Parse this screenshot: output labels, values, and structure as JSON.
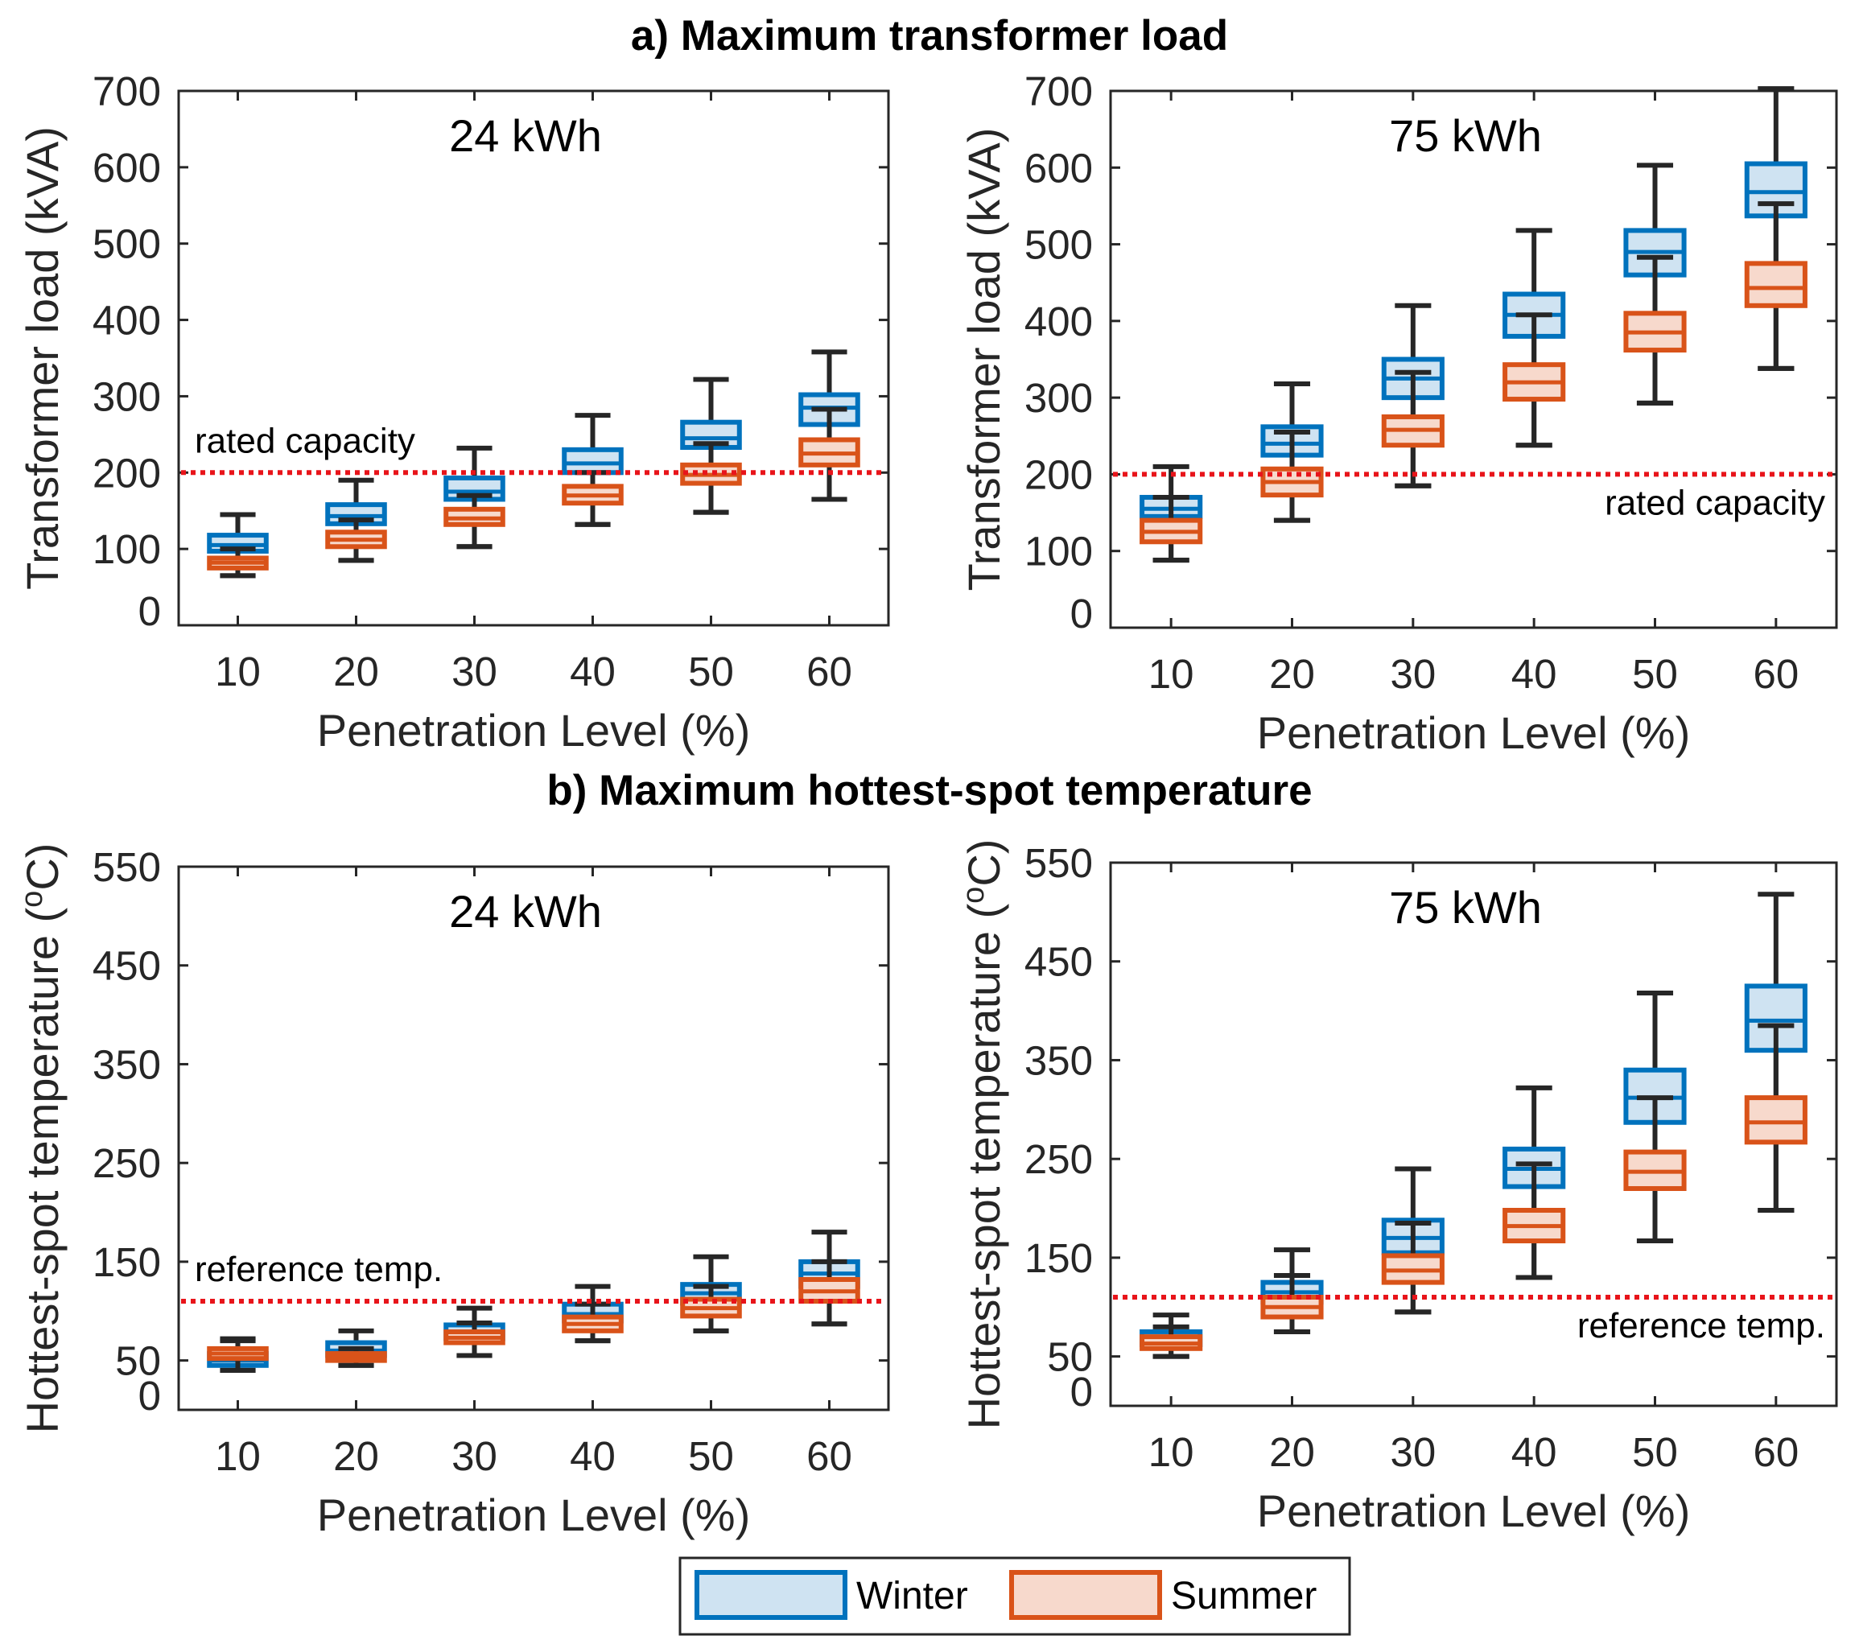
{
  "colors": {
    "winter_edge": "#0072BD",
    "winter_fill": "#CFE3F2",
    "summer_edge": "#D95319",
    "summer_fill": "#F7D9CC",
    "whisker": "#262626",
    "reference_line": "#E8141A"
  },
  "section_titles": {
    "a": "a) Maximum transformer load",
    "b": "b) Maximum hottest-spot temperature"
  },
  "legend": {
    "winter": "Winter",
    "summer": "Summer"
  },
  "chart_data": [
    {
      "id": "a-left",
      "type": "box",
      "title": "24 kWh",
      "xlabel": "Penetration Level (%)",
      "ylabel": "Transformer load (kVA)",
      "categories": [
        "10",
        "20",
        "30",
        "40",
        "50",
        "60"
      ],
      "ylim": [
        0,
        700
      ],
      "yticks": [
        "0",
        "100",
        "200",
        "300",
        "400",
        "500",
        "600",
        "700"
      ],
      "reference": {
        "value": 200,
        "label": "rated capacity",
        "label_position": "above-left"
      },
      "series": [
        {
          "name": "Winter",
          "boxes": [
            {
              "min": 65,
              "q1": 97,
              "median": 105,
              "q3": 118,
              "max": 145
            },
            {
              "min": 85,
              "q1": 133,
              "median": 143,
              "q3": 158,
              "max": 190
            },
            {
              "min": 103,
              "q1": 165,
              "median": 175,
              "q3": 193,
              "max": 232
            },
            {
              "min": 132,
              "q1": 200,
              "median": 212,
              "q3": 230,
              "max": 275
            },
            {
              "min": 148,
              "q1": 233,
              "median": 245,
              "q3": 266,
              "max": 322
            },
            {
              "min": 165,
              "q1": 263,
              "median": 285,
              "q3": 302,
              "max": 358
            }
          ]
        },
        {
          "name": "Summer",
          "boxes": [
            {
              "min": 65,
              "q1": 75,
              "median": 82,
              "q3": 88,
              "max": 100
            },
            {
              "min": 85,
              "q1": 103,
              "median": 112,
              "q3": 122,
              "max": 138
            },
            {
              "min": 103,
              "q1": 132,
              "median": 140,
              "q3": 152,
              "max": 170
            },
            {
              "min": 132,
              "q1": 160,
              "median": 170,
              "q3": 182,
              "max": 200
            },
            {
              "min": 148,
              "q1": 186,
              "median": 197,
              "q3": 210,
              "max": 238
            },
            {
              "min": 165,
              "q1": 210,
              "median": 225,
              "q3": 243,
              "max": 283
            }
          ]
        }
      ]
    },
    {
      "id": "a-right",
      "type": "box",
      "title": "75 kWh",
      "xlabel": "Penetration Level (%)",
      "ylabel": "Transformer load (kVA)",
      "categories": [
        "10",
        "20",
        "30",
        "40",
        "50",
        "60"
      ],
      "ylim": [
        0,
        700
      ],
      "yticks": [
        "0",
        "100",
        "200",
        "300",
        "400",
        "500",
        "600",
        "700"
      ],
      "reference": {
        "value": 200,
        "label": "rated capacity",
        "label_position": "below-right"
      },
      "series": [
        {
          "name": "Winter",
          "boxes": [
            {
              "min": 88,
              "q1": 145,
              "median": 155,
              "q3": 170,
              "max": 210
            },
            {
              "min": 140,
              "q1": 225,
              "median": 240,
              "q3": 262,
              "max": 318
            },
            {
              "min": 185,
              "q1": 300,
              "median": 325,
              "q3": 350,
              "max": 420
            },
            {
              "min": 238,
              "q1": 380,
              "median": 408,
              "q3": 435,
              "max": 518
            },
            {
              "min": 293,
              "q1": 460,
              "median": 490,
              "q3": 518,
              "max": 603
            },
            {
              "min": 338,
              "q1": 537,
              "median": 568,
              "q3": 605,
              "max": 703
            }
          ]
        },
        {
          "name": "Summer",
          "boxes": [
            {
              "min": 88,
              "q1": 112,
              "median": 125,
              "q3": 140,
              "max": 170
            },
            {
              "min": 140,
              "q1": 173,
              "median": 190,
              "q3": 207,
              "max": 255
            },
            {
              "min": 185,
              "q1": 238,
              "median": 258,
              "q3": 275,
              "max": 333
            },
            {
              "min": 238,
              "q1": 298,
              "median": 320,
              "q3": 343,
              "max": 408
            },
            {
              "min": 293,
              "q1": 362,
              "median": 385,
              "q3": 410,
              "max": 483
            },
            {
              "min": 338,
              "q1": 420,
              "median": 443,
              "q3": 475,
              "max": 553
            }
          ]
        }
      ]
    },
    {
      "id": "b-left",
      "type": "box",
      "title": "24 kWh",
      "xlabel": "Penetration Level (%)",
      "ylabel": "Hottest-spot temperature",
      "ylabel_unit": "(oC)",
      "categories": [
        "10",
        "20",
        "30",
        "40",
        "50",
        "60"
      ],
      "ylim": [
        0,
        550
      ],
      "yticks": [
        "0",
        "50",
        "150",
        "250",
        "350",
        "450",
        "550"
      ],
      "reference": {
        "value": 110,
        "label": "reference temp.",
        "label_position": "above-left"
      },
      "series": [
        {
          "name": "Winter",
          "boxes": [
            {
              "min": 40,
              "q1": 45,
              "median": 50,
              "q3": 57,
              "max": 72
            },
            {
              "min": 45,
              "q1": 55,
              "median": 60,
              "q3": 68,
              "max": 80
            },
            {
              "min": 55,
              "q1": 72,
              "median": 78,
              "q3": 86,
              "max": 103
            },
            {
              "min": 70,
              "q1": 90,
              "median": 97,
              "q3": 107,
              "max": 125
            },
            {
              "min": 80,
              "q1": 108,
              "median": 118,
              "q3": 127,
              "max": 155
            },
            {
              "min": 87,
              "q1": 125,
              "median": 138,
              "q3": 150,
              "max": 180
            }
          ]
        },
        {
          "name": "Summer",
          "boxes": [
            {
              "min": 40,
              "q1": 52,
              "median": 57,
              "q3": 62,
              "max": 70
            },
            {
              "min": 45,
              "q1": 50,
              "median": 53,
              "q3": 57,
              "max": 62
            },
            {
              "min": 55,
              "q1": 68,
              "median": 73,
              "q3": 79,
              "max": 88
            },
            {
              "min": 70,
              "q1": 80,
              "median": 87,
              "q3": 94,
              "max": 107
            },
            {
              "min": 80,
              "q1": 95,
              "median": 103,
              "q3": 112,
              "max": 125
            },
            {
              "min": 87,
              "q1": 110,
              "median": 120,
              "q3": 132,
              "max": 150
            }
          ]
        }
      ]
    },
    {
      "id": "b-right",
      "type": "box",
      "title": "75 kWh",
      "xlabel": "Penetration Level (%)",
      "ylabel": "Hottest-spot temperature",
      "ylabel_unit": "(oC)",
      "categories": [
        "10",
        "20",
        "30",
        "40",
        "50",
        "60"
      ],
      "ylim": [
        0,
        550
      ],
      "yticks": [
        "0",
        "50",
        "150",
        "250",
        "350",
        "450",
        "550"
      ],
      "reference": {
        "value": 110,
        "label": "reference temp.",
        "label_position": "below-right"
      },
      "series": [
        {
          "name": "Winter",
          "boxes": [
            {
              "min": 50,
              "q1": 62,
              "median": 68,
              "q3": 75,
              "max": 92
            },
            {
              "min": 75,
              "q1": 105,
              "median": 115,
              "q3": 125,
              "max": 158
            },
            {
              "min": 95,
              "q1": 155,
              "median": 170,
              "q3": 188,
              "max": 240
            },
            {
              "min": 130,
              "q1": 222,
              "median": 240,
              "q3": 260,
              "max": 322
            },
            {
              "min": 167,
              "q1": 287,
              "median": 312,
              "q3": 340,
              "max": 418
            },
            {
              "min": 198,
              "q1": 360,
              "median": 390,
              "q3": 425,
              "max": 518
            }
          ]
        },
        {
          "name": "Summer",
          "boxes": [
            {
              "min": 50,
              "q1": 58,
              "median": 63,
              "q3": 70,
              "max": 80
            },
            {
              "min": 75,
              "q1": 90,
              "median": 100,
              "q3": 110,
              "max": 132
            },
            {
              "min": 95,
              "q1": 125,
              "median": 137,
              "q3": 152,
              "max": 185
            },
            {
              "min": 130,
              "q1": 167,
              "median": 182,
              "q3": 198,
              "max": 245
            },
            {
              "min": 167,
              "q1": 220,
              "median": 237,
              "q3": 257,
              "max": 312
            },
            {
              "min": 198,
              "q1": 267,
              "median": 287,
              "q3": 312,
              "max": 385
            }
          ]
        }
      ]
    }
  ]
}
